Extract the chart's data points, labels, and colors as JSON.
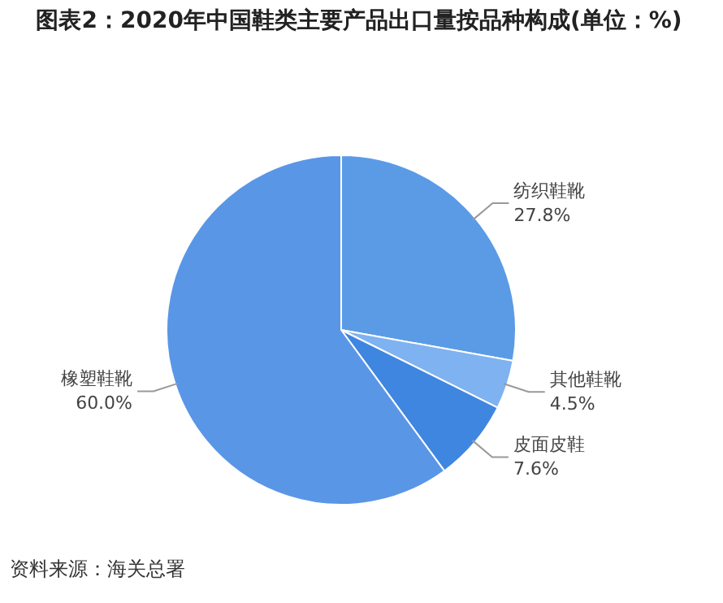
{
  "chart_data": {
    "type": "pie",
    "title": "图表2：2020年中国鞋类主要产品出口量按品种构成(单位：%)",
    "categories": [
      "纺织鞋靴",
      "其他鞋靴",
      "皮面皮鞋",
      "橡塑鞋靴"
    ],
    "values": [
      27.8,
      4.5,
      7.6,
      60.0
    ],
    "value_labels": [
      "27.8%",
      "4.5%",
      "7.6%",
      "60.0%"
    ],
    "colors": [
      "#5b9be6",
      "#7fb2f0",
      "#3f86e0",
      "#5a96e6"
    ],
    "legend": false,
    "annotations": [
      "资料来源：海关总署"
    ]
  }
}
